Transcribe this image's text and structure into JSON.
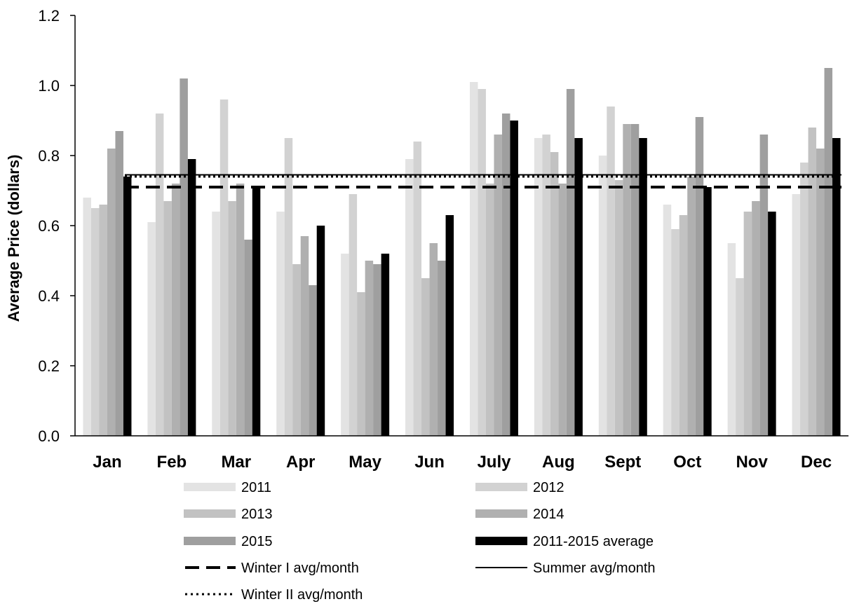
{
  "chart_data": {
    "type": "bar",
    "title": "",
    "xlabel": "",
    "ylabel": "Average Price (dollars)",
    "ylim": [
      0,
      1.2
    ],
    "yticks": [
      "0.0",
      "0.2",
      "0.4",
      "0.6",
      "0.8",
      "1.0",
      "1.2"
    ],
    "grid": false,
    "legend_position": "bottom",
    "categories": [
      "Jan",
      "Feb",
      "Mar",
      "Apr",
      "May",
      "Jun",
      "July",
      "Aug",
      "Sept",
      "Oct",
      "Nov",
      "Dec"
    ],
    "series": [
      {
        "name": "2011",
        "color": "#e3e3e3",
        "values": [
          0.68,
          0.61,
          0.64,
          0.64,
          0.52,
          0.79,
          1.01,
          0.85,
          0.8,
          0.66,
          0.55,
          0.69
        ]
      },
      {
        "name": "2012",
        "color": "#d2d2d2",
        "values": [
          0.65,
          0.92,
          0.96,
          0.85,
          0.69,
          0.84,
          0.99,
          0.86,
          0.94,
          0.59,
          0.45,
          0.78
        ]
      },
      {
        "name": "2013",
        "color": "#c2c2c2",
        "values": [
          0.66,
          0.67,
          0.67,
          0.49,
          0.41,
          0.45,
          0.72,
          0.81,
          0.73,
          0.63,
          0.64,
          0.88
        ]
      },
      {
        "name": "2014",
        "color": "#b0b0b0",
        "values": [
          0.82,
          0.72,
          0.72,
          0.57,
          0.5,
          0.55,
          0.86,
          0.72,
          0.89,
          0.74,
          0.67,
          0.82
        ]
      },
      {
        "name": "2015",
        "color": "#9f9f9f",
        "values": [
          0.87,
          1.02,
          0.56,
          0.43,
          0.49,
          0.5,
          0.92,
          0.99,
          0.89,
          0.91,
          0.86,
          1.05
        ]
      },
      {
        "name": "2011-2015 average",
        "color": "#000000",
        "values": [
          0.74,
          0.79,
          0.71,
          0.6,
          0.52,
          0.63,
          0.9,
          0.85,
          0.85,
          0.71,
          0.64,
          0.85
        ]
      }
    ],
    "reference_lines": [
      {
        "name": "Winter I avg/month",
        "value": 0.71,
        "style": "dashed",
        "color": "#000000"
      },
      {
        "name": "Summer avg/month",
        "value": 0.745,
        "style": "solid",
        "color": "#000000"
      },
      {
        "name": "Winter II avg/month",
        "value": 0.74,
        "style": "dotted",
        "color": "#000000"
      }
    ]
  }
}
